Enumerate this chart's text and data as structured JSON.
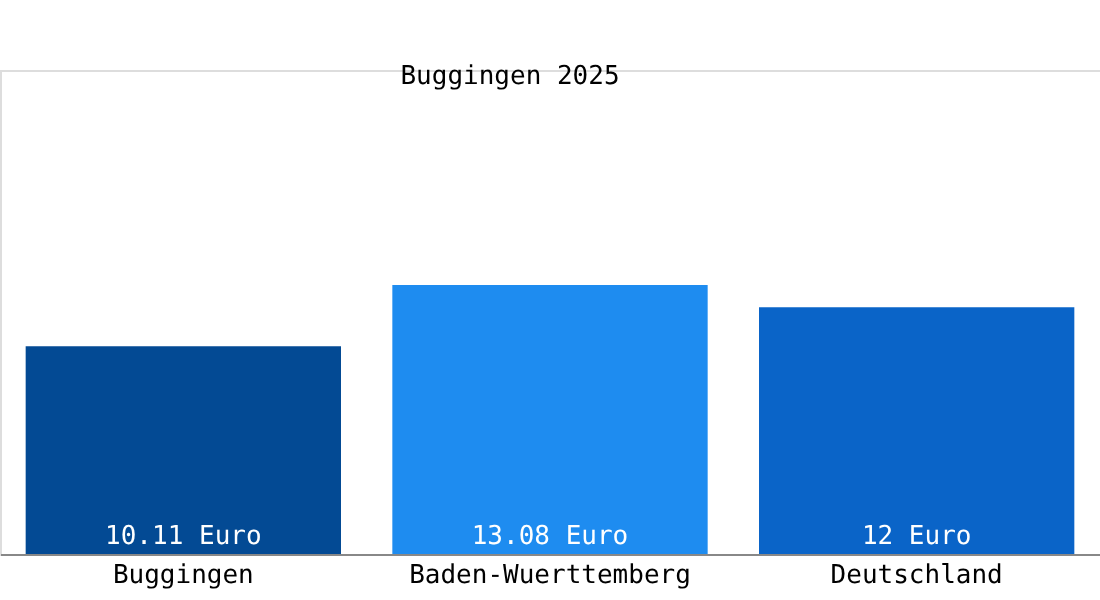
{
  "chart_data": {
    "type": "bar",
    "title": "Buggingen 2025",
    "categories": [
      "Buggingen",
      "Baden-Wuerttemberg",
      "Deutschland"
    ],
    "values": [
      10.11,
      13.08,
      12
    ],
    "colors": [
      "#034a94",
      "#1e8cf0",
      "#0a64c8"
    ],
    "value_labels": [
      "10.11 Euro",
      "13.08 Euro",
      "12 Euro"
    ]
  }
}
